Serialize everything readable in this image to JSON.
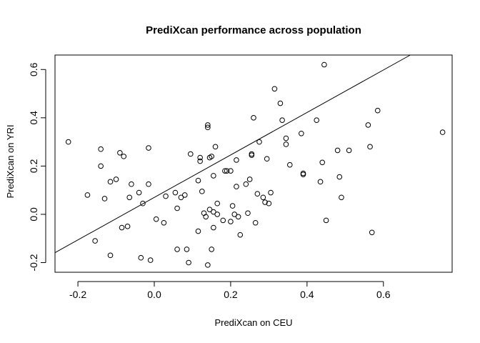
{
  "chart_data": {
    "type": "scatter",
    "title": "PrediXcan performance across population",
    "xlabel": "PrediXcan on CEU",
    "ylabel": "PrediXcan on YRI",
    "xlim": [
      -0.26,
      0.78
    ],
    "ylim": [
      -0.24,
      0.66
    ],
    "x_ticks": [
      -0.2,
      0.0,
      0.2,
      0.4,
      0.6
    ],
    "x_tick_labels": [
      "-0.2",
      "0.0",
      "0.2",
      "0.4",
      "0.6"
    ],
    "y_ticks": [
      -0.2,
      0.0,
      0.2,
      0.4,
      0.6
    ],
    "y_tick_labels": [
      "-0.2",
      "0.0",
      "0.2",
      "0.4",
      "0.6"
    ],
    "grid": false,
    "legend": "none",
    "marker": "open-circle",
    "regression_line": {
      "intercept": 0.07,
      "slope": 0.88
    },
    "points": [
      [
        -0.225,
        0.3
      ],
      [
        -0.175,
        0.08
      ],
      [
        -0.155,
        -0.11
      ],
      [
        -0.14,
        0.27
      ],
      [
        -0.14,
        0.2
      ],
      [
        -0.13,
        0.065
      ],
      [
        -0.115,
        0.135
      ],
      [
        -0.115,
        -0.17
      ],
      [
        -0.1,
        0.145
      ],
      [
        -0.09,
        0.255
      ],
      [
        -0.085,
        -0.055
      ],
      [
        -0.08,
        0.24
      ],
      [
        -0.07,
        -0.05
      ],
      [
        -0.065,
        0.07
      ],
      [
        -0.06,
        0.125
      ],
      [
        -0.04,
        0.09
      ],
      [
        -0.035,
        -0.18
      ],
      [
        -0.03,
        0.045
      ],
      [
        -0.015,
        0.275
      ],
      [
        -0.015,
        0.125
      ],
      [
        -0.01,
        -0.19
      ],
      [
        0.005,
        -0.02
      ],
      [
        0.025,
        -0.035
      ],
      [
        0.03,
        0.075
      ],
      [
        0.055,
        0.09
      ],
      [
        0.06,
        0.025
      ],
      [
        0.06,
        -0.145
      ],
      [
        0.07,
        0.07
      ],
      [
        0.08,
        0.08
      ],
      [
        0.085,
        -0.145
      ],
      [
        0.09,
        -0.2
      ],
      [
        0.095,
        0.25
      ],
      [
        0.115,
        0.14
      ],
      [
        0.115,
        -0.07
      ],
      [
        0.12,
        0.235
      ],
      [
        0.12,
        0.22
      ],
      [
        0.125,
        0.095
      ],
      [
        0.13,
        0.005
      ],
      [
        0.135,
        -0.01
      ],
      [
        0.14,
        0.37
      ],
      [
        0.14,
        0.36
      ],
      [
        0.14,
        -0.21
      ],
      [
        0.145,
        0.235
      ],
      [
        0.145,
        0.02
      ],
      [
        0.15,
        0.24
      ],
      [
        0.15,
        -0.145
      ],
      [
        0.155,
        0.16
      ],
      [
        0.155,
        0.01
      ],
      [
        0.155,
        -0.055
      ],
      [
        0.16,
        0.28
      ],
      [
        0.165,
        0.045
      ],
      [
        0.165,
        0.0
      ],
      [
        0.18,
        -0.025
      ],
      [
        0.185,
        0.18
      ],
      [
        0.19,
        0.18
      ],
      [
        0.2,
        0.18
      ],
      [
        0.2,
        -0.03
      ],
      [
        0.205,
        0.035
      ],
      [
        0.21,
        0.0
      ],
      [
        0.215,
        0.225
      ],
      [
        0.215,
        0.115
      ],
      [
        0.22,
        -0.01
      ],
      [
        0.225,
        -0.085
      ],
      [
        0.24,
        0.125
      ],
      [
        0.245,
        0.005
      ],
      [
        0.25,
        0.145
      ],
      [
        0.255,
        0.25
      ],
      [
        0.255,
        0.245
      ],
      [
        0.26,
        0.4
      ],
      [
        0.265,
        -0.035
      ],
      [
        0.27,
        0.085
      ],
      [
        0.275,
        0.3
      ],
      [
        0.285,
        0.07
      ],
      [
        0.29,
        0.05
      ],
      [
        0.295,
        0.23
      ],
      [
        0.3,
        0.045
      ],
      [
        0.305,
        0.09
      ],
      [
        0.315,
        0.52
      ],
      [
        0.33,
        0.46
      ],
      [
        0.335,
        0.39
      ],
      [
        0.345,
        0.315
      ],
      [
        0.345,
        0.29
      ],
      [
        0.355,
        0.205
      ],
      [
        0.385,
        0.335
      ],
      [
        0.39,
        0.17
      ],
      [
        0.39,
        0.165
      ],
      [
        0.425,
        0.39
      ],
      [
        0.435,
        0.135
      ],
      [
        0.44,
        0.215
      ],
      [
        0.445,
        0.62
      ],
      [
        0.45,
        -0.025
      ],
      [
        0.48,
        0.265
      ],
      [
        0.485,
        0.155
      ],
      [
        0.49,
        0.07
      ],
      [
        0.51,
        0.265
      ],
      [
        0.56,
        0.37
      ],
      [
        0.565,
        0.28
      ],
      [
        0.57,
        -0.075
      ],
      [
        0.585,
        0.43
      ],
      [
        0.755,
        0.34
      ]
    ]
  }
}
